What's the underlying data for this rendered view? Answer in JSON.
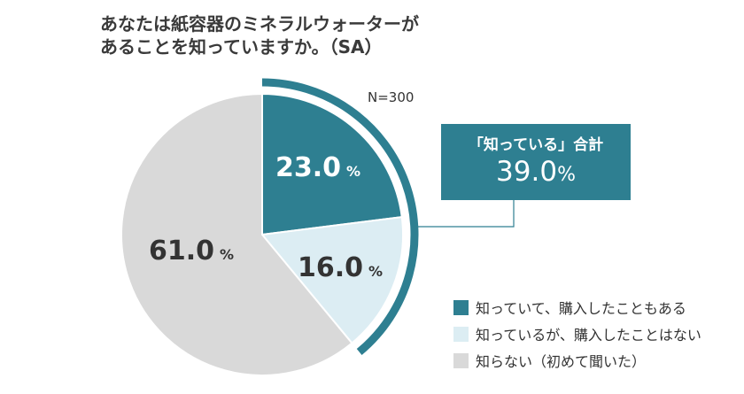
{
  "title": {
    "line1": "あなたは紙容器のミネラルウォーターが",
    "line2": "あることを知っていますか。（SA）"
  },
  "chart_data": {
    "type": "pie",
    "n_label": "N=300",
    "unit": "%",
    "slices": [
      {
        "label": "知っていて、購入したこともある",
        "value": 23.0,
        "display": "23.0",
        "color": "#2e7f91"
      },
      {
        "label": "知っているが、購入したことはない",
        "value": 16.0,
        "display": "16.0",
        "color": "#dcedf3"
      },
      {
        "label": "知らない（初めて聞いた）",
        "value": 61.0,
        "display": "61.0",
        "color": "#d9d9d9"
      }
    ],
    "callout": {
      "title": "「知っている」合計",
      "value": "39.0",
      "unit": "%"
    },
    "legend_position": "bottom-right"
  }
}
